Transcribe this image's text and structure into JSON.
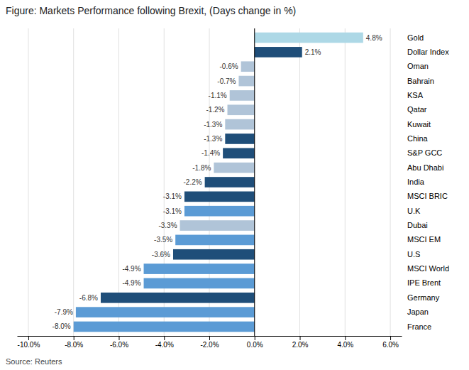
{
  "chart_data": {
    "type": "bar",
    "orientation": "horizontal",
    "title": "Figure: Markets Performance following Brexit, (Days change in %)",
    "source": "Source: Reuters",
    "categories": [
      "Gold",
      "Dollar Index",
      "Oman",
      "Bahrain",
      "KSA",
      "Qatar",
      "Kuwait",
      "China",
      "S&P GCC",
      "Abu Dhabi",
      "India",
      "MSCI BRIC",
      "U.K",
      "Dubai",
      "MSCI EM",
      "U.S",
      "MSCI World",
      "IPE Brent",
      "Germany",
      "Japan",
      "France"
    ],
    "values": [
      4.8,
      2.1,
      -0.6,
      -0.7,
      -1.1,
      -1.2,
      -1.3,
      -1.3,
      -1.4,
      -1.8,
      -2.2,
      -3.1,
      -3.1,
      -3.3,
      -3.5,
      -3.6,
      -4.9,
      -4.9,
      -6.8,
      -7.9,
      -8.0
    ],
    "value_labels": [
      "4.8%",
      "2.1%",
      "-0.6%",
      "-0.7%",
      "-1.1%",
      "-1.2%",
      "-1.3%",
      "-1.3%",
      "-1.4%",
      "-1.8%",
      "-2.2%",
      "-3.1%",
      "-3.1%",
      "-3.3%",
      "-3.5%",
      "-3.6%",
      "-4.9%",
      "-4.9%",
      "-6.8%",
      "-7.9%",
      "-8.0%"
    ],
    "colors": [
      "#add8e6",
      "#1f4e79",
      "#b0c4d8",
      "#b0c4d8",
      "#b0c4d8",
      "#b0c4d8",
      "#b0c4d8",
      "#1f4e79",
      "#1f4e79",
      "#b0c4d8",
      "#1f4e79",
      "#1f4e79",
      "#5b9bd5",
      "#b0c4d8",
      "#5b9bd5",
      "#1f4e79",
      "#5b9bd5",
      "#5b9bd5",
      "#1f4e79",
      "#5b9bd5",
      "#5b9bd5"
    ],
    "data_labels": true,
    "xlim": [
      -10.5,
      6.5
    ],
    "xticks": [
      {
        "value": -10.0,
        "label": "-10.0%"
      },
      {
        "value": -8.0,
        "label": "-8.0%"
      },
      {
        "value": -6.0,
        "label": "-6.0%"
      },
      {
        "value": -4.0,
        "label": "-4.0%"
      },
      {
        "value": -2.0,
        "label": "-2.0%"
      },
      {
        "value": 0.0,
        "label": "0.0%"
      },
      {
        "value": 2.0,
        "label": "2.0%"
      },
      {
        "value": 4.0,
        "label": "4.0%"
      },
      {
        "value": 6.0,
        "label": "6.0%"
      }
    ],
    "grid": true
  }
}
